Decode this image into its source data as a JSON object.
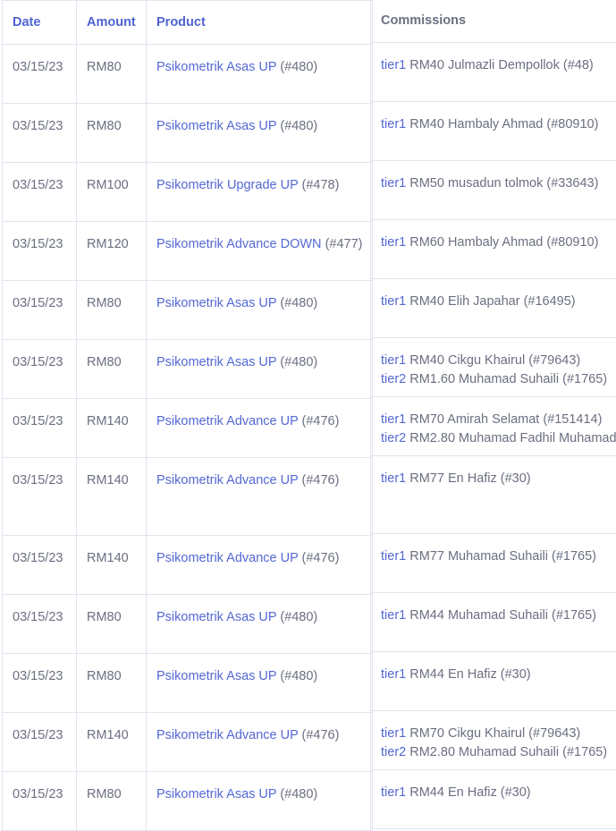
{
  "left_table": {
    "headers": [
      "Date",
      "Amount",
      "Product"
    ],
    "rows": [
      {
        "date": "03/15/23",
        "amount": "RM80",
        "product": "Psikometrik Asas UP",
        "product_id": "(#480)"
      },
      {
        "date": "03/15/23",
        "amount": "RM80",
        "product": "Psikometrik Asas UP",
        "product_id": "(#480)"
      },
      {
        "date": "03/15/23",
        "amount": "RM100",
        "product": "Psikometrik Upgrade UP",
        "product_id": "(#478)"
      },
      {
        "date": "03/15/23",
        "amount": "RM120",
        "product": "Psikometrik Advance DOWN",
        "product_id": "(#477)"
      },
      {
        "date": "03/15/23",
        "amount": "RM80",
        "product": "Psikometrik Asas UP",
        "product_id": "(#480)"
      },
      {
        "date": "03/15/23",
        "amount": "RM80",
        "product": "Psikometrik Asas UP",
        "product_id": "(#480)"
      },
      {
        "date": "03/15/23",
        "amount": "RM140",
        "product": "Psikometrik Advance UP",
        "product_id": "(#476)"
      },
      {
        "date": "03/15/23",
        "amount": "RM140",
        "product": "Psikometrik Advance UP",
        "product_id": "(#476)"
      },
      {
        "date": "03/15/23",
        "amount": "RM140",
        "product": "Psikometrik Advance UP",
        "product_id": "(#476)"
      },
      {
        "date": "03/15/23",
        "amount": "RM80",
        "product": "Psikometrik Asas UP",
        "product_id": "(#480)"
      },
      {
        "date": "03/15/23",
        "amount": "RM80",
        "product": "Psikometrik Asas UP",
        "product_id": "(#480)"
      },
      {
        "date": "03/15/23",
        "amount": "RM140",
        "product": "Psikometrik Advance UP",
        "product_id": "(#476)"
      },
      {
        "date": "03/15/23",
        "amount": "RM80",
        "product": "Psikometrik Asas UP",
        "product_id": "(#480)"
      }
    ]
  },
  "right_table": {
    "header": "Commissions",
    "rows": [
      [
        {
          "tier": "tier1",
          "text": "RM40 Julmazli Dempollok (#48)"
        }
      ],
      [
        {
          "tier": "tier1",
          "text": "RM40 Hambaly Ahmad (#80910)"
        }
      ],
      [
        {
          "tier": "tier1",
          "text": "RM50 musadun tolmok (#33643)"
        }
      ],
      [
        {
          "tier": "tier1",
          "text": "RM60 Hambaly Ahmad (#80910)"
        }
      ],
      [
        {
          "tier": "tier1",
          "text": "RM40 Elih Japahar (#16495)"
        }
      ],
      [
        {
          "tier": "tier1",
          "text": "RM40 Cikgu Khairul (#79643)"
        },
        {
          "tier": "tier2",
          "text": "RM1.60 Muhamad Suhaili (#1765)"
        }
      ],
      [
        {
          "tier": "tier1",
          "text": "RM70 Amirah Selamat (#151414)"
        },
        {
          "tier": "tier2",
          "text": "RM2.80 Muhamad Fadhil Muhamad"
        }
      ],
      [
        {
          "tier": "tier1",
          "text": "RM77 En Hafiz (#30)"
        }
      ],
      [
        {
          "tier": "tier1",
          "text": "RM77 Muhamad Suhaili (#1765)"
        }
      ],
      [
        {
          "tier": "tier1",
          "text": "RM44 Muhamad Suhaili (#1765)"
        }
      ],
      [
        {
          "tier": "tier1",
          "text": "RM44 En Hafiz (#30)"
        }
      ],
      [
        {
          "tier": "tier1",
          "text": "RM70 Cikgu Khairul (#79643)"
        },
        {
          "tier": "tier2",
          "text": "RM2.80 Muhamad Suhaili (#1765)"
        }
      ],
      [
        {
          "tier": "tier1",
          "text": "RM44 En Hafiz (#30)"
        }
      ]
    ]
  },
  "colors": {
    "link": "#5468d4",
    "text": "#6b6f80",
    "border": "#e3e3ef"
  }
}
